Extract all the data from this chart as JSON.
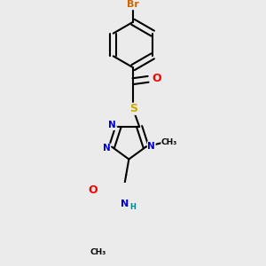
{
  "bg_color": "#ebebeb",
  "bond_color": "#000000",
  "bond_width": 1.5,
  "atom_colors": {
    "C": "#000000",
    "N": "#0000cc",
    "O": "#ff0000",
    "S": "#ccaa00",
    "Br": "#cc6600",
    "H": "#008888"
  },
  "font_size": 8,
  "fig_width": 3.0,
  "fig_height": 3.0
}
